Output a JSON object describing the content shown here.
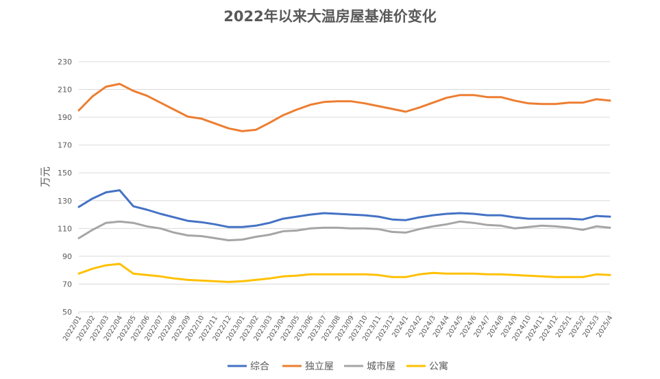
{
  "chart_data": {
    "type": "line",
    "title": "2022年以来大温房屋基准价变化",
    "xlabel": "",
    "ylabel": "万元",
    "ylim": [
      50,
      230
    ],
    "yticks": [
      50,
      70,
      90,
      110,
      130,
      150,
      170,
      190,
      210,
      230
    ],
    "grid": true,
    "legend_position": "bottom",
    "categories": [
      "2022/01",
      "2022/02",
      "2022/03",
      "2022/04",
      "2022/05",
      "2022/06",
      "2022/07",
      "2022/08",
      "2022/09",
      "2022/10",
      "2022/11",
      "2022/12",
      "2023/01",
      "2023/02",
      "2023/03",
      "2023/04",
      "2023/05",
      "2023/06",
      "2023/07",
      "2023/08",
      "2023/09",
      "2023/10",
      "2023/11",
      "2023/12",
      "2024/1",
      "2024/2",
      "2024/3",
      "2024/4",
      "2024/5",
      "2024/6",
      "2024/7",
      "2024/8",
      "2024/9",
      "2024/10",
      "2024/11",
      "2024/12",
      "2025/1",
      "2025/2",
      "2025/3",
      "2025/4"
    ],
    "series": [
      {
        "name": "综合",
        "color": "#4472C4",
        "values": [
          125.5,
          131.5,
          136,
          137.5,
          126,
          123.5,
          120.5,
          118,
          115.5,
          114.5,
          113,
          111,
          111,
          112,
          114,
          117,
          118.5,
          120,
          121,
          120.5,
          120,
          119.5,
          118.5,
          116.5,
          116,
          118,
          119.5,
          120.5,
          121,
          120.5,
          119.5,
          119.5,
          118,
          117,
          117,
          117,
          117,
          116.5,
          119,
          118.5
        ]
      },
      {
        "name": "独立屋",
        "color": "#ED7D31",
        "values": [
          195,
          205,
          212,
          214,
          209,
          205.5,
          200.5,
          195.5,
          190.5,
          189,
          185.5,
          182,
          180,
          181,
          186,
          191.5,
          195.5,
          199,
          201,
          201.5,
          201.5,
          200,
          198,
          196,
          194,
          197,
          200.5,
          204,
          206,
          206,
          204.5,
          204.5,
          202,
          200,
          199.5,
          199.5,
          200.5,
          200.5,
          203,
          202
        ]
      },
      {
        "name": "城市屋",
        "color": "#A5A5A5",
        "values": [
          103,
          109,
          114,
          115,
          114,
          111.5,
          110,
          107,
          105,
          104.5,
          103,
          101.5,
          102,
          104,
          105.5,
          108,
          108.5,
          110,
          110.5,
          110.5,
          110,
          110,
          109.5,
          107.5,
          107,
          109.5,
          111.5,
          113,
          115,
          114,
          112.5,
          112,
          110,
          111,
          112,
          111.5,
          110.5,
          109,
          111.5,
          110.5
        ]
      },
      {
        "name": "公寓",
        "color": "#FFC000",
        "values": [
          77.5,
          81,
          83.5,
          84.5,
          77.5,
          76.5,
          75.5,
          74,
          73,
          72.5,
          72,
          71.5,
          72,
          73,
          74,
          75.5,
          76,
          77,
          77,
          77,
          77,
          77,
          76.5,
          75,
          75,
          77,
          78,
          77.5,
          77.5,
          77.5,
          77,
          77,
          76.5,
          76,
          75.5,
          75,
          75,
          75,
          77,
          76.5
        ]
      }
    ]
  }
}
